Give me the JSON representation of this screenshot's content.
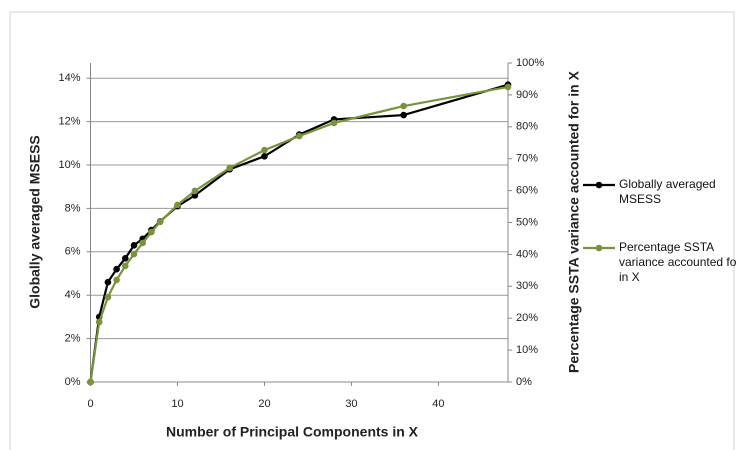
{
  "chart_data": {
    "type": "line",
    "x_label": "Number of Principal Components in X",
    "y_label": "Globally averaged MSESS",
    "y2_label": "Percentage SSTA variance accounted for in X",
    "xlim": [
      0,
      48
    ],
    "xticks": [
      0,
      10,
      20,
      30,
      40
    ],
    "ylim": [
      0,
      14.7
    ],
    "yticks": [
      {
        "value": 0,
        "label": "0%"
      },
      {
        "value": 2,
        "label": "2%"
      },
      {
        "value": 4,
        "label": "4%"
      },
      {
        "value": 6,
        "label": "6%"
      },
      {
        "value": 8,
        "label": "8%"
      },
      {
        "value": 10,
        "label": "10%"
      },
      {
        "value": 12,
        "label": "12%"
      },
      {
        "value": 14,
        "label": "14%"
      }
    ],
    "y2lim": [
      0,
      100
    ],
    "y2ticks": [
      {
        "value": 0,
        "label": "0%"
      },
      {
        "value": 10,
        "label": "10%"
      },
      {
        "value": 20,
        "label": "20%"
      },
      {
        "value": 30,
        "label": "30%"
      },
      {
        "value": 40,
        "label": "40%"
      },
      {
        "value": 50,
        "label": "50%"
      },
      {
        "value": 60,
        "label": "60%"
      },
      {
        "value": 70,
        "label": "70%"
      },
      {
        "value": 80,
        "label": "80%"
      },
      {
        "value": 90,
        "label": "90%"
      },
      {
        "value": 100,
        "label": "100%"
      }
    ],
    "grid": true,
    "x": [
      0,
      1,
      2,
      3,
      4,
      5,
      6,
      7,
      8,
      10,
      12,
      16,
      20,
      24,
      28,
      36,
      48
    ],
    "series": [
      {
        "name": "Globally averaged MSESS",
        "color": "#000000",
        "values": [
          0,
          3.0,
          4.6,
          5.2,
          5.7,
          6.3,
          6.6,
          7.0,
          7.4,
          8.1,
          8.6,
          9.8,
          10.4,
          11.4,
          12.1,
          12.3,
          13.7
        ]
      },
      {
        "name": "Percentage SSTA variance accounted for in X",
        "color": "#77933c",
        "axis": "y2",
        "values": [
          0,
          18.8,
          26.6,
          32,
          36.4,
          40.1,
          43.6,
          47,
          50.2,
          55.5,
          59.9,
          67.1,
          72.7,
          77.1,
          81.2,
          86.5,
          92.5
        ]
      }
    ]
  }
}
